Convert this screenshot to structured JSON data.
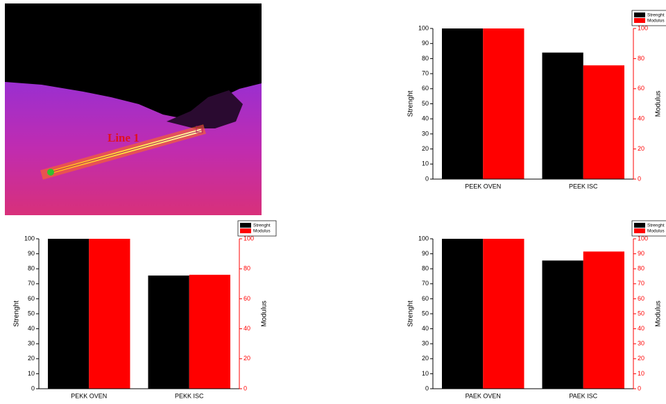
{
  "image_annotation": "Line 1",
  "chart_data": [
    {
      "type": "bar",
      "categories": [
        "PEEK OVEN",
        "PEEK ISC"
      ],
      "series": [
        {
          "name": "Strenght",
          "color": "#000000",
          "values": [
            100,
            84
          ]
        },
        {
          "name": "Modulus",
          "color": "#ff0000",
          "values": [
            100,
            75.5
          ],
          "axis": "y2"
        }
      ],
      "ylabel": "Strenght",
      "y2label": "Modulus",
      "ylim": [
        0,
        100
      ],
      "yticks": [
        0,
        10,
        20,
        30,
        40,
        50,
        60,
        70,
        80,
        90,
        100
      ],
      "y2lim": [
        0,
        100
      ],
      "y2ticks": [
        0,
        20,
        40,
        60,
        80,
        100
      ],
      "legend": "top-right"
    },
    {
      "type": "bar",
      "categories": [
        "PEKK OVEN",
        "PEKK ISC"
      ],
      "series": [
        {
          "name": "Strenght",
          "color": "#000000",
          "values": [
            100,
            75.5
          ]
        },
        {
          "name": "Modulus",
          "color": "#ff0000",
          "values": [
            100,
            76
          ],
          "axis": "y2"
        }
      ],
      "ylabel": "Strenght",
      "y2label": "Modulus",
      "ylim": [
        0,
        100
      ],
      "yticks": [
        0,
        10,
        20,
        30,
        40,
        50,
        60,
        70,
        80,
        90,
        100
      ],
      "y2lim": [
        0,
        100
      ],
      "y2ticks": [
        0,
        20,
        40,
        60,
        80,
        100
      ],
      "legend": "top-right"
    },
    {
      "type": "bar",
      "categories": [
        "PAEK OVEN",
        "PAEK ISC"
      ],
      "series": [
        {
          "name": "Strenght",
          "color": "#000000",
          "values": [
            100,
            85.5
          ]
        },
        {
          "name": "Modulus",
          "color": "#ff0000",
          "values": [
            100,
            91.5
          ],
          "axis": "y2"
        }
      ],
      "ylabel": "Strenght",
      "y2label": "Modulus",
      "ylim": [
        0,
        100
      ],
      "yticks": [
        0,
        10,
        20,
        30,
        40,
        50,
        60,
        70,
        80,
        90,
        100
      ],
      "y2lim": [
        0,
        100
      ],
      "y2ticks": [
        0,
        10,
        20,
        30,
        40,
        50,
        60,
        70,
        80,
        90,
        100
      ],
      "legend": "top-right"
    }
  ]
}
